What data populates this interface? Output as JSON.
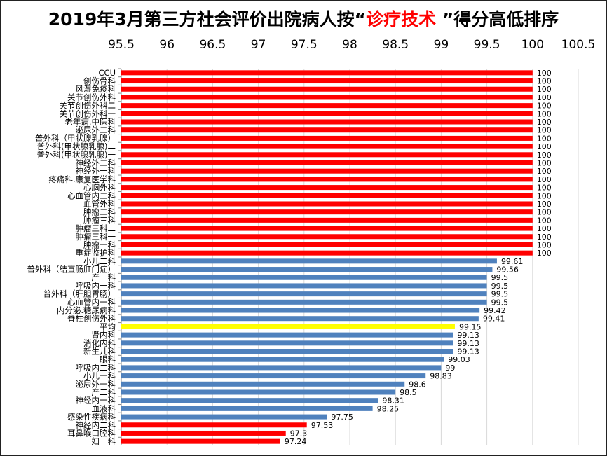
{
  "chart_data": {
    "type": "bar",
    "orientation": "horizontal",
    "title_parts": [
      "2019年3月第三方社会评价出院病人按“",
      "诊疗技术 ",
      "”得分高低排序"
    ],
    "xlim": [
      95.5,
      100.5
    ],
    "xticks": [
      "95.5",
      "96",
      "96.5",
      "97",
      "97.5",
      "98",
      "98.5",
      "99",
      "99.5",
      "100",
      "100.5"
    ],
    "xaxis_position": "top",
    "grid": true,
    "colors": {
      "red": "#FF0000",
      "blue": "#4F81BD",
      "yellow": "#FFFF00"
    },
    "categories": [
      "CCU",
      "创伤骨科",
      "风湿免疫科",
      "关节创伤外科",
      "关节创伤外科二",
      "关节创伤外科一",
      "老年病.中医科",
      "泌尿外二科",
      "普外科（甲状腺乳腺）",
      "普外科(甲状腺乳腺)二",
      "普外科(甲状腺乳腺)一",
      "神经外二科",
      "神经外一科",
      "疼痛科.康复医学科",
      "心胸外科",
      "心血管内二科",
      "血管外科",
      "肿瘤二科",
      "肿瘤三科",
      "肿瘤三科二",
      "肿瘤三科一",
      "肿瘤一科",
      "重症监护科",
      "小儿二科",
      "普外科（结直肠肛门症）",
      "产一科",
      "呼吸内一科",
      "普外科（肝胆胃肠）",
      "心血管内一科",
      "内分泌.糖尿病科",
      "脊柱创伤外科",
      "平均",
      "肾内科",
      "消化内科",
      "新生儿科",
      "眼科",
      "呼吸内二科",
      "小儿一科",
      "泌尿外一科",
      "产二科",
      "神经内一科",
      "血液科",
      "感染性疾病科",
      "神经内二科",
      "耳鼻喉口腔科",
      "妇一科"
    ],
    "values": [
      100,
      100,
      100,
      100,
      100,
      100,
      100,
      100,
      100,
      100,
      100,
      100,
      100,
      100,
      100,
      100,
      100,
      100,
      100,
      100,
      100,
      100,
      100,
      99.61,
      99.56,
      99.5,
      99.5,
      99.5,
      99.5,
      99.42,
      99.41,
      99.15,
      99.13,
      99.13,
      99.13,
      99.03,
      99,
      98.83,
      98.6,
      98.5,
      98.31,
      98.25,
      97.75,
      97.53,
      97.3,
      97.24
    ],
    "value_labels": [
      "100",
      "100",
      "100",
      "100",
      "100",
      "100",
      "100",
      "100",
      "100",
      "100",
      "100",
      "100",
      "100",
      "100",
      "100",
      "100",
      "100",
      "100",
      "100",
      "100",
      "100",
      "100",
      "100",
      "99.61",
      "99.56",
      "99.5",
      "99.5",
      "99.5",
      "99.5",
      "99.42",
      "99.41",
      "99.15",
      "99.13",
      "99.13",
      "99.13",
      "99.03",
      "99",
      "98.83",
      "98.6",
      "98.5",
      "98.31",
      "98.25",
      "97.75",
      "97.53",
      "97.3",
      "97.24"
    ],
    "bar_colors": [
      "red",
      "red",
      "red",
      "red",
      "red",
      "red",
      "red",
      "red",
      "red",
      "red",
      "red",
      "red",
      "red",
      "red",
      "red",
      "red",
      "red",
      "red",
      "red",
      "red",
      "red",
      "red",
      "red",
      "blue",
      "blue",
      "blue",
      "blue",
      "blue",
      "blue",
      "blue",
      "blue",
      "yellow",
      "blue",
      "blue",
      "blue",
      "blue",
      "blue",
      "blue",
      "blue",
      "blue",
      "blue",
      "blue",
      "blue",
      "red",
      "red",
      "red"
    ]
  }
}
